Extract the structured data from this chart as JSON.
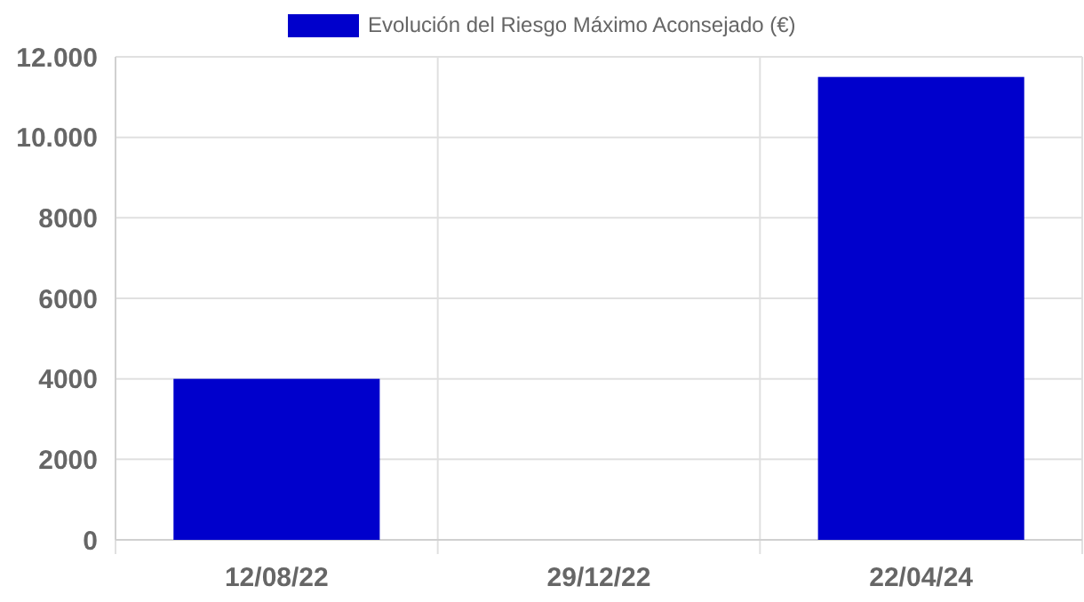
{
  "chart_data": {
    "type": "bar",
    "categories": [
      "12/08/22",
      "29/12/22",
      "22/04/24"
    ],
    "series": [
      {
        "name": "Evolución del Riesgo Máximo Aconsejado (€)",
        "color": "#0000cc",
        "values": [
          4000,
          0,
          11500
        ]
      }
    ],
    "ylim": [
      0,
      12000
    ],
    "yticks": [
      0,
      2000,
      4000,
      6000,
      8000,
      {
        "value": 10000,
        "label": "10.000"
      },
      {
        "value": 12000,
        "label": "12.000"
      }
    ],
    "grid": true,
    "legend": "top"
  }
}
